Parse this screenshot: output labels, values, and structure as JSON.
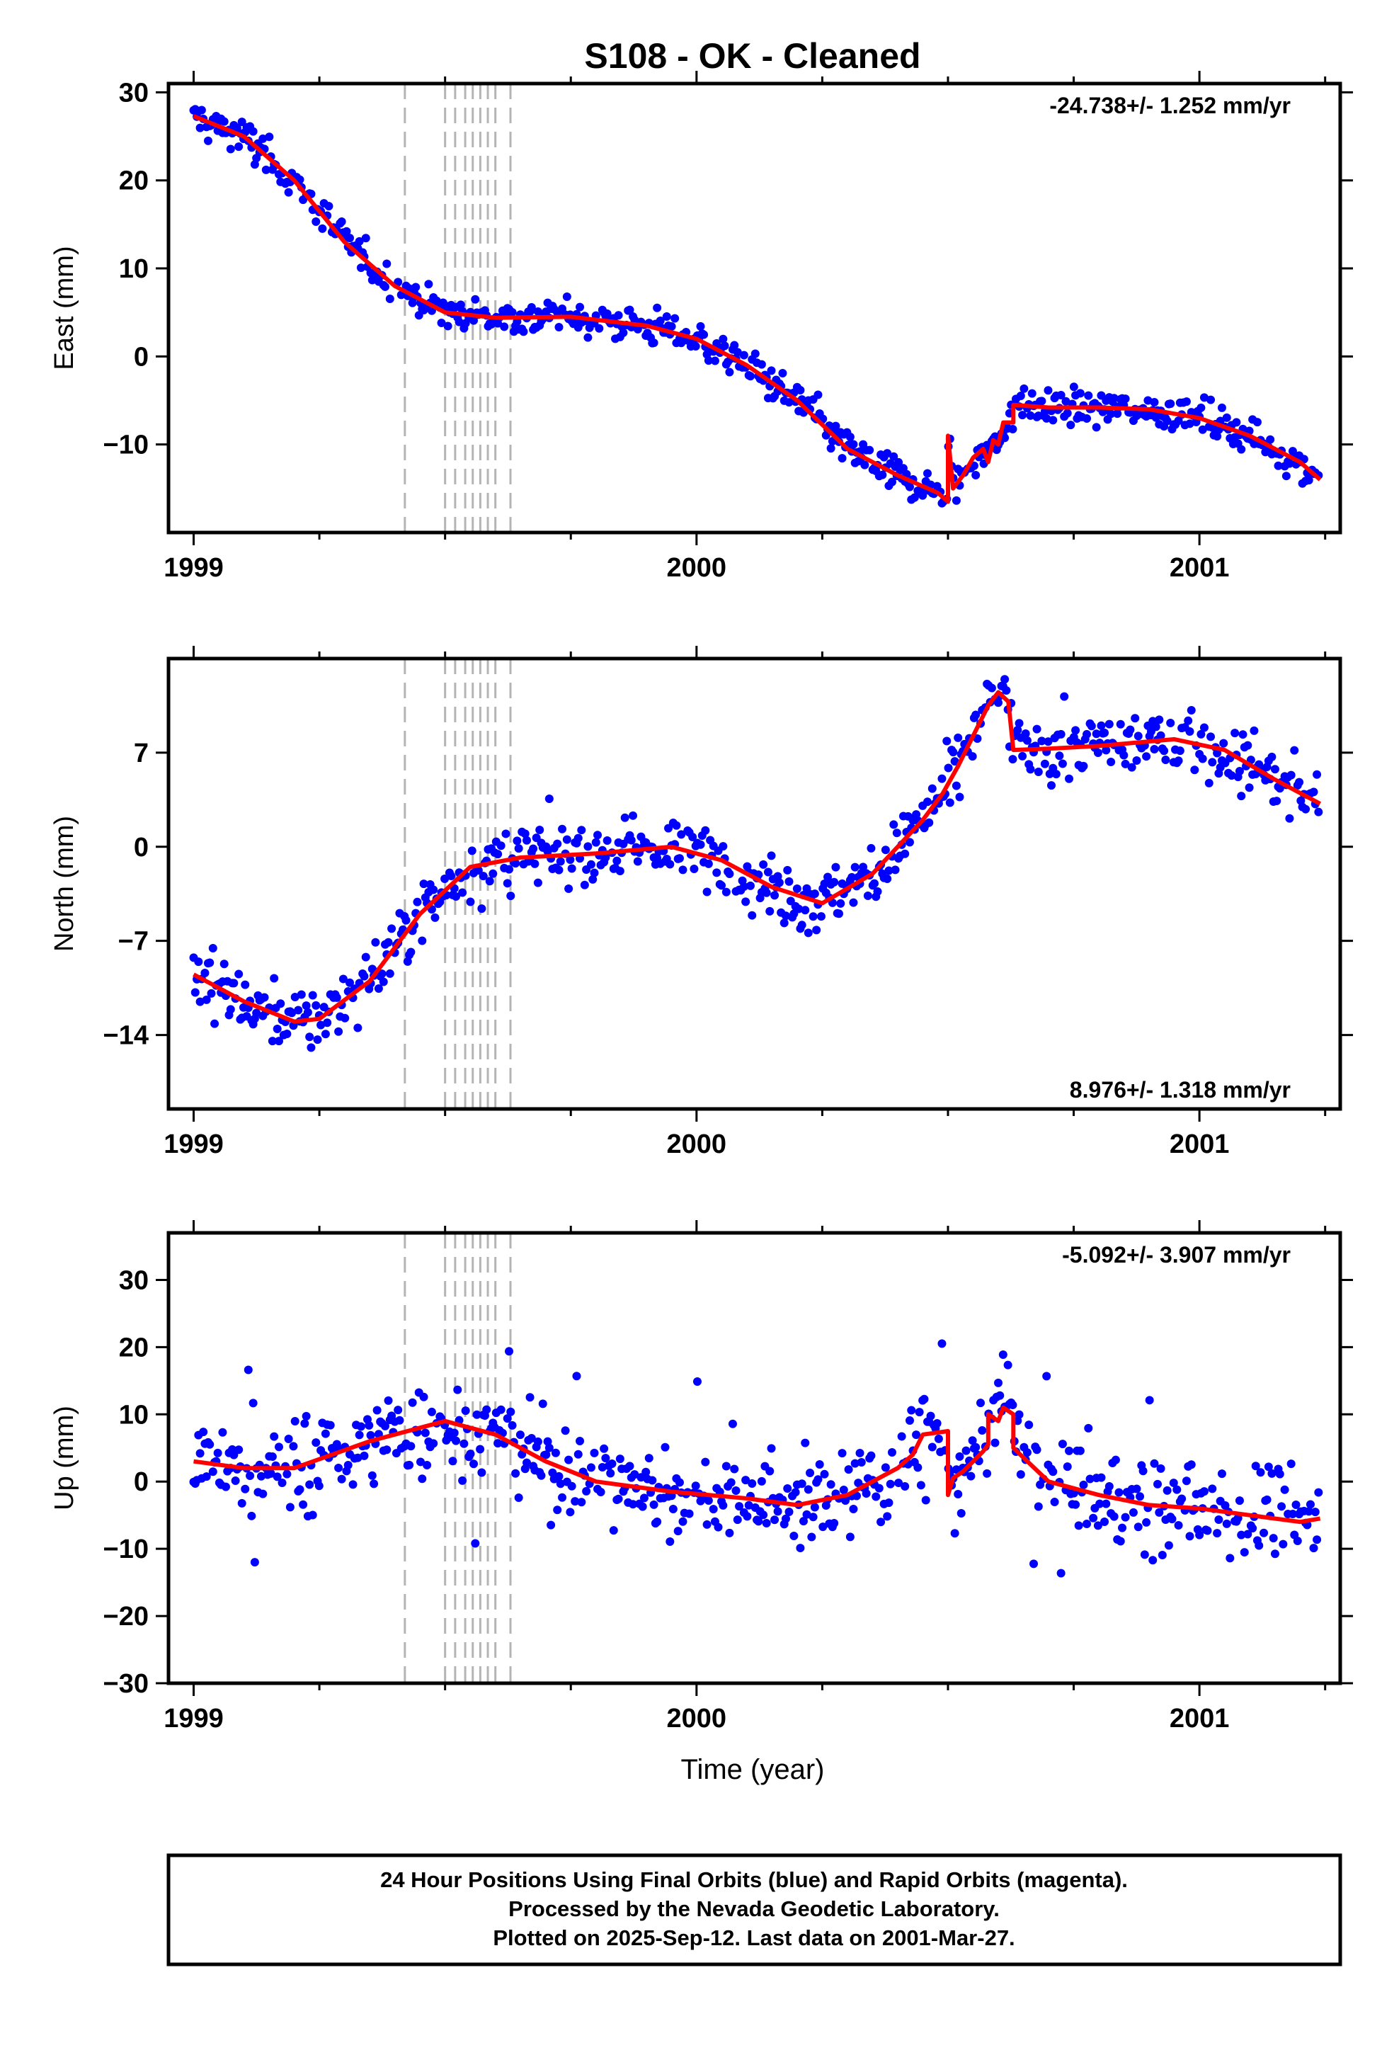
{
  "title": "S108  - OK - Cleaned",
  "xlabel": "Time (year)",
  "x_ticks": [
    1999,
    2000,
    2001
  ],
  "x_range": [
    1998.95,
    2001.28
  ],
  "offset_epochs": [
    1999.42,
    1999.5,
    1999.52,
    1999.54,
    1999.555,
    1999.57,
    1999.585,
    1999.6,
    1999.63
  ],
  "footer": {
    "line1": "24 Hour Positions Using Final Orbits (blue) and Rapid Orbits (magenta).",
    "line2": "Processed by the Nevada Geodetic Laboratory.",
    "line3": "Plotted on 2025-Sep-12. Last data on 2001-Mar-27."
  },
  "colors": {
    "points": "#0000ff",
    "model": "#ff0000",
    "offsets": "#b4b4b4"
  },
  "chart_data": [
    {
      "type": "scatter",
      "panel": "east",
      "ylabel": "East (mm)",
      "ylim": [
        -20,
        31
      ],
      "yticks": [
        30,
        20,
        10,
        0,
        -10
      ],
      "ytick_labels": [
        "30",
        "20",
        "10",
        "0",
        "−10"
      ],
      "rate": "-24.738+/- 1.252 mm/yr",
      "rate_position": "top-right",
      "model": [
        [
          1999.0,
          27.3
        ],
        [
          1999.1,
          25.0
        ],
        [
          1999.2,
          20.0
        ],
        [
          1999.3,
          13.0
        ],
        [
          1999.4,
          8.0
        ],
        [
          1999.5,
          5.0
        ],
        [
          1999.6,
          4.4
        ],
        [
          1999.75,
          4.5
        ],
        [
          1999.9,
          3.5
        ],
        [
          2000.0,
          2.0
        ],
        [
          2000.1,
          -1.0
        ],
        [
          2000.2,
          -5.0
        ],
        [
          2000.3,
          -10.5
        ],
        [
          2000.4,
          -13.5
        ],
        [
          2000.48,
          -15.5
        ],
        [
          2000.5,
          -16.5
        ],
        [
          2000.5,
          -9.0
        ],
        [
          2000.51,
          -15.0
        ],
        [
          2000.53,
          -13.5
        ],
        [
          2000.55,
          -11.5
        ],
        [
          2000.57,
          -10.5
        ],
        [
          2000.58,
          -12.0
        ],
        [
          2000.59,
          -9.5
        ],
        [
          2000.6,
          -10.0
        ],
        [
          2000.61,
          -7.5
        ],
        [
          2000.63,
          -7.5
        ],
        [
          2000.63,
          -5.5
        ],
        [
          2000.7,
          -5.8
        ],
        [
          2000.8,
          -5.8
        ],
        [
          2000.9,
          -6.0
        ],
        [
          2001.0,
          -7.0
        ],
        [
          2001.1,
          -9.0
        ],
        [
          2001.2,
          -12.0
        ],
        [
          2001.24,
          -14.0
        ]
      ]
    },
    {
      "type": "scatter",
      "panel": "north",
      "ylabel": "North (mm)",
      "ylim": [
        -19.5,
        14
      ],
      "yticks": [
        7,
        0,
        -7,
        -14
      ],
      "ytick_labels": [
        "7",
        "0",
        "−7",
        "−14"
      ],
      "rate": "8.976+/- 1.318 mm/yr",
      "rate_position": "bottom-right",
      "model": [
        [
          1999.0,
          -9.5
        ],
        [
          1999.1,
          -11.5
        ],
        [
          1999.2,
          -13.0
        ],
        [
          1999.25,
          -12.8
        ],
        [
          1999.35,
          -10.0
        ],
        [
          1999.45,
          -5.0
        ],
        [
          1999.55,
          -1.5
        ],
        [
          1999.65,
          -0.8
        ],
        [
          1999.8,
          -0.5
        ],
        [
          1999.95,
          0.0
        ],
        [
          2000.05,
          -1.0
        ],
        [
          2000.15,
          -3.0
        ],
        [
          2000.25,
          -4.2
        ],
        [
          2000.35,
          -2.0
        ],
        [
          2000.45,
          2.0
        ],
        [
          2000.49,
          4.0
        ],
        [
          2000.52,
          6.0
        ],
        [
          2000.54,
          7.5
        ],
        [
          2000.56,
          9.0
        ],
        [
          2000.58,
          10.5
        ],
        [
          2000.6,
          11.5
        ],
        [
          2000.62,
          10.8
        ],
        [
          2000.63,
          7.2
        ],
        [
          2000.7,
          7.3
        ],
        [
          2000.8,
          7.5
        ],
        [
          2000.95,
          8.0
        ],
        [
          2001.05,
          7.2
        ],
        [
          2001.15,
          5.0
        ],
        [
          2001.24,
          3.2
        ]
      ]
    },
    {
      "type": "scatter",
      "panel": "up",
      "ylabel": "Up (mm)",
      "ylim": [
        -30,
        37
      ],
      "yticks": [
        30,
        20,
        10,
        0,
        -10,
        -20,
        -30
      ],
      "ytick_labels": [
        "30",
        "20",
        "10",
        "0",
        "−10",
        "−20",
        "−30"
      ],
      "rate": "-5.092+/- 3.907 mm/yr",
      "rate_position": "top-right",
      "model": [
        [
          1999.0,
          3.0
        ],
        [
          1999.1,
          2.0
        ],
        [
          1999.2,
          2.0
        ],
        [
          1999.35,
          6.0
        ],
        [
          1999.5,
          9.0
        ],
        [
          1999.6,
          7.0
        ],
        [
          1999.7,
          3.0
        ],
        [
          1999.8,
          0.0
        ],
        [
          1999.95,
          -1.5
        ],
        [
          2000.1,
          -2.5
        ],
        [
          2000.2,
          -3.5
        ],
        [
          2000.3,
          -2.0
        ],
        [
          2000.4,
          2.0
        ],
        [
          2000.43,
          4.0
        ],
        [
          2000.45,
          7.0
        ],
        [
          2000.5,
          7.5
        ],
        [
          2000.5,
          -2.0
        ],
        [
          2000.51,
          0.5
        ],
        [
          2000.53,
          1.5
        ],
        [
          2000.55,
          3.0
        ],
        [
          2000.57,
          4.5
        ],
        [
          2000.58,
          5.5
        ],
        [
          2000.58,
          10.0
        ],
        [
          2000.6,
          9.0
        ],
        [
          2000.61,
          11.0
        ],
        [
          2000.63,
          10.0
        ],
        [
          2000.63,
          5.0
        ],
        [
          2000.7,
          0.0
        ],
        [
          2000.8,
          -2.0
        ],
        [
          2000.9,
          -3.5
        ],
        [
          2001.0,
          -4.0
        ],
        [
          2001.1,
          -5.0
        ],
        [
          2001.2,
          -6.0
        ],
        [
          2001.24,
          -5.5
        ]
      ]
    }
  ]
}
